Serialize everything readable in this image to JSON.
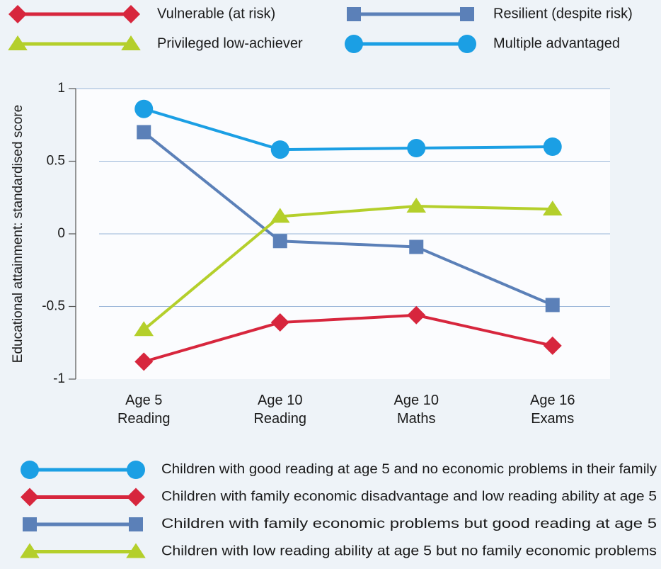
{
  "chart_data": {
    "type": "line",
    "y_label": "Educational attainment: standardised score",
    "categories": [
      "Age 5 Reading",
      "Age 10 Reading",
      "Age 10 Maths",
      "Age 16 Exams"
    ],
    "ylim": [
      -1,
      1
    ],
    "yticks": [
      1,
      0.5,
      0,
      -0.5,
      -1
    ],
    "grid": true,
    "series": [
      {
        "name": "Vulnerable (at risk)",
        "description": "Children with family economic disadvantage and low reading ability at age 5",
        "color": "#d7263d",
        "marker": "diamond",
        "values": [
          -0.88,
          -0.61,
          -0.56,
          -0.77
        ]
      },
      {
        "name": "Resilient (despite risk)",
        "description": "Children with family economic problems but good reading at age 5",
        "color": "#5b80b8",
        "marker": "square",
        "values": [
          0.7,
          -0.05,
          -0.09,
          -0.49
        ]
      },
      {
        "name": "Privileged low-achiever",
        "description": "Children with low reading ability at age 5 but no family economic problems",
        "color": "#b4cf2b",
        "marker": "triangle",
        "values": [
          -0.66,
          0.12,
          0.19,
          0.17
        ]
      },
      {
        "name": "Multiple advantaged",
        "description": "Children with good reading at age 5 and no economic problems in their family",
        "color": "#1b9fe4",
        "marker": "circle",
        "values": [
          0.86,
          0.58,
          0.59,
          0.6
        ]
      }
    ]
  }
}
